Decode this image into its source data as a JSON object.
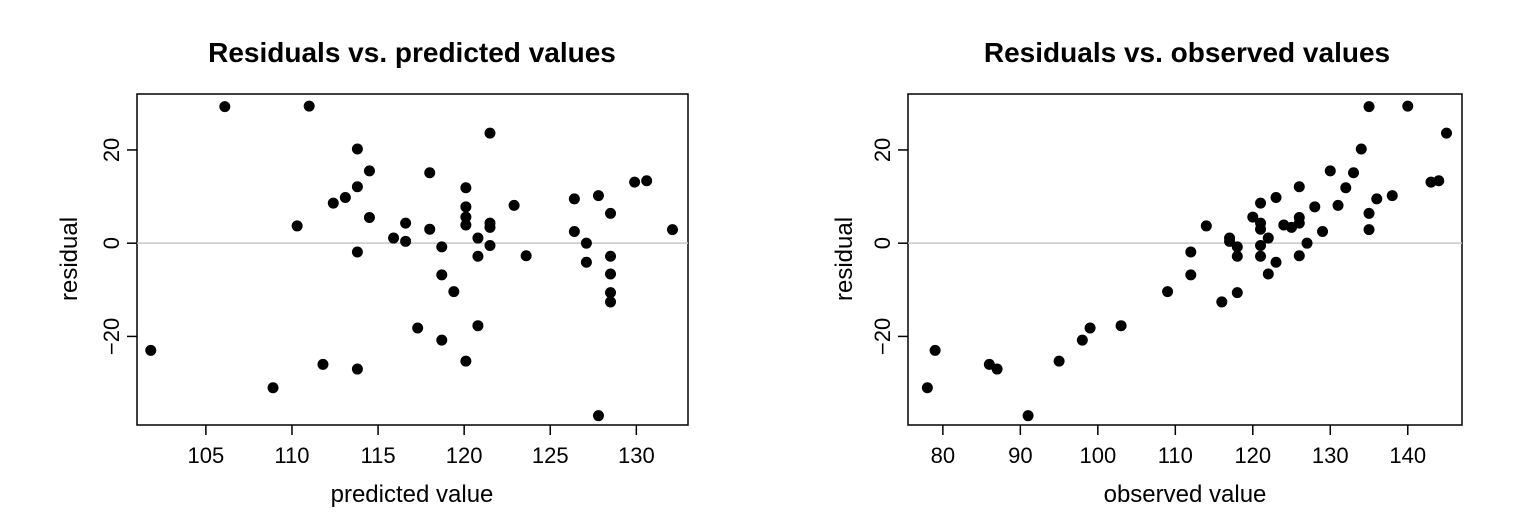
{
  "chart_data": [
    {
      "type": "scatter",
      "title": "Residuals vs. predicted values",
      "xlabel": "predicted value",
      "ylabel": "residual",
      "xlim": [
        101,
        133
      ],
      "ylim": [
        -39,
        32
      ],
      "xticks": [
        105,
        110,
        115,
        120,
        125,
        130
      ],
      "yticks": [
        -20,
        0,
        20
      ],
      "reference_line_y": 0,
      "grid": false,
      "points": [
        [
          101.8,
          -23
        ],
        [
          106.1,
          29.3
        ],
        [
          108.9,
          -31
        ],
        [
          110.3,
          3.7
        ],
        [
          111,
          29.4
        ],
        [
          111.8,
          -26
        ],
        [
          112.4,
          8.6
        ],
        [
          113.1,
          9.8
        ],
        [
          113.8,
          12.1
        ],
        [
          113.8,
          20.2
        ],
        [
          113.8,
          -1.9
        ],
        [
          113.8,
          -27
        ],
        [
          114.5,
          15.5
        ],
        [
          114.5,
          5.5
        ],
        [
          115.9,
          1.1
        ],
        [
          116.6,
          4.3
        ],
        [
          116.6,
          0.4
        ],
        [
          117.3,
          -18.2
        ],
        [
          118,
          15.1
        ],
        [
          118,
          3
        ],
        [
          118.7,
          -0.8
        ],
        [
          118.7,
          -6.8
        ],
        [
          118.7,
          -20.8
        ],
        [
          119.4,
          -10.4
        ],
        [
          120.1,
          11.9
        ],
        [
          120.1,
          7.8
        ],
        [
          120.1,
          5.6
        ],
        [
          120.1,
          3.9
        ],
        [
          120.1,
          -25.3
        ],
        [
          120.8,
          1.1
        ],
        [
          120.8,
          -2.8
        ],
        [
          120.8,
          -17.7
        ],
        [
          121.5,
          23.6
        ],
        [
          121.5,
          4.3
        ],
        [
          121.5,
          3.4
        ],
        [
          121.5,
          -0.5
        ],
        [
          122.9,
          8.1
        ],
        [
          123.6,
          -2.7
        ],
        [
          126.4,
          9.5
        ],
        [
          126.4,
          2.5
        ],
        [
          127.1,
          0
        ],
        [
          127.1,
          -4.1
        ],
        [
          127.8,
          10.2
        ],
        [
          127.8,
          -37
        ],
        [
          128.5,
          6.4
        ],
        [
          128.5,
          -2.8
        ],
        [
          128.5,
          -6.6
        ],
        [
          128.5,
          -10.6
        ],
        [
          128.5,
          -12.6
        ],
        [
          129.9,
          13.1
        ],
        [
          130.6,
          13.4
        ],
        [
          132.1,
          2.9
        ]
      ]
    },
    {
      "type": "scatter",
      "title": "Residuals vs. observed values",
      "xlabel": "observed value",
      "ylabel": "residual",
      "xlim": [
        75.5,
        147
      ],
      "ylim": [
        -39,
        32
      ],
      "xticks": [
        80,
        90,
        100,
        110,
        120,
        130,
        140
      ],
      "yticks": [
        -20,
        0,
        20
      ],
      "reference_line_y": 0,
      "grid": false,
      "points": [
        [
          78,
          -31
        ],
        [
          79,
          -23
        ],
        [
          86,
          -26
        ],
        [
          87,
          -27
        ],
        [
          91,
          -37
        ],
        [
          95,
          -25.3
        ],
        [
          98,
          -20.8
        ],
        [
          99,
          -18.2
        ],
        [
          103,
          -17.7
        ],
        [
          109,
          -10.4
        ],
        [
          112,
          -1.9
        ],
        [
          112,
          -6.8
        ],
        [
          114,
          3.7
        ],
        [
          116,
          -12.6
        ],
        [
          117,
          1.1
        ],
        [
          117,
          0.4
        ],
        [
          118,
          -0.8
        ],
        [
          118,
          -2.8
        ],
        [
          118,
          -10.6
        ],
        [
          120,
          5.6
        ],
        [
          121,
          8.6
        ],
        [
          121,
          4.3
        ],
        [
          121,
          3
        ],
        [
          121,
          -0.5
        ],
        [
          121,
          -2.8
        ],
        [
          122,
          1.1
        ],
        [
          122,
          -6.6
        ],
        [
          123,
          9.8
        ],
        [
          123,
          -4.1
        ],
        [
          124,
          3.9
        ],
        [
          125,
          3.4
        ],
        [
          126,
          12.1
        ],
        [
          126,
          5.5
        ],
        [
          126,
          4.3
        ],
        [
          126,
          -2.7
        ],
        [
          127,
          0
        ],
        [
          128,
          7.8
        ],
        [
          129,
          2.5
        ],
        [
          130,
          15.5
        ],
        [
          131,
          8.1
        ],
        [
          132,
          11.9
        ],
        [
          133,
          15.1
        ],
        [
          134,
          20.2
        ],
        [
          135,
          29.3
        ],
        [
          135,
          6.4
        ],
        [
          135,
          2.9
        ],
        [
          136,
          9.5
        ],
        [
          138,
          10.2
        ],
        [
          140,
          29.4
        ],
        [
          143,
          13.1
        ],
        [
          144,
          13.4
        ],
        [
          145,
          23.6
        ]
      ]
    }
  ]
}
